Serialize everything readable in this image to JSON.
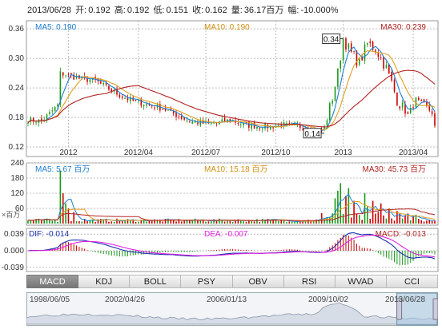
{
  "header": {
    "date": "2013/06/28",
    "open_label": "开:",
    "open": "0.192",
    "high_label": "高:",
    "high": "0.192",
    "low_label": "低:",
    "low": "0.151",
    "close_label": "收:",
    "close": "0.162",
    "volume_label": "量:",
    "volume": "36.17百万",
    "change_label": "幅:",
    "change": "-10.000%"
  },
  "colors": {
    "up": "#1a9a1a",
    "down": "#cc0000",
    "ma5": "#1e7fd0",
    "ma10": "#e0a020",
    "ma30": "#b22222",
    "dif": "#1a2fb0",
    "dea": "#e020e0",
    "grid": "#bcbcbc"
  },
  "price_legend": {
    "ma5": "MA5: 0.190",
    "ma10": "MA10: 0.190",
    "ma30": "MA30: 0.239"
  },
  "volume_legend": {
    "ma5": "MA5: 5.67 百万",
    "ma10": "MA10: 15.18 百万",
    "ma30": "MA30: 45.73 百万"
  },
  "macd_legend": {
    "dif": "DIF: -0.014",
    "dea": "DEA: -0.007",
    "macd": "MACD: -0.013"
  },
  "volume_unit": "×百万",
  "tabs": [
    "MACD",
    "KDJ",
    "BOLL",
    "PSY",
    "OBV",
    "RSI",
    "WVAD",
    "CCI"
  ],
  "active_tab": "MACD",
  "navigator": {
    "labels": [
      "1998/06/05",
      "2002/04/26",
      "2006/01/13",
      "2009/10/02",
      "2013/06/28"
    ],
    "selected_fraction": [
      0.9,
      1.0
    ]
  },
  "chart_data": [
    {
      "type": "candlestick",
      "panel": "price",
      "y_ticks": [
        0.12,
        0.18,
        0.24,
        0.3,
        0.36
      ],
      "ylim": [
        0.12,
        0.37
      ],
      "x_tick_labels": [
        "2012",
        "2012/04",
        "2012/07",
        "2012/10",
        "2013",
        "2013/04"
      ],
      "x_tick_positions": [
        15,
        41,
        66,
        92,
        117,
        143
      ],
      "annotations": [
        {
          "text": "0.34",
          "x": 117,
          "y": 0.34
        },
        {
          "text": "0.14",
          "x": 110,
          "y": 0.148
        }
      ],
      "anchors": [
        [
          0,
          0.175
        ],
        [
          5,
          0.172
        ],
        [
          8,
          0.188
        ],
        [
          11,
          0.205
        ],
        [
          12,
          0.27
        ],
        [
          15,
          0.265
        ],
        [
          20,
          0.258
        ],
        [
          25,
          0.255
        ],
        [
          30,
          0.238
        ],
        [
          35,
          0.222
        ],
        [
          40,
          0.212
        ],
        [
          45,
          0.205
        ],
        [
          50,
          0.198
        ],
        [
          55,
          0.185
        ],
        [
          60,
          0.172
        ],
        [
          65,
          0.168
        ],
        [
          70,
          0.168
        ],
        [
          75,
          0.175
        ],
        [
          80,
          0.165
        ],
        [
          85,
          0.162
        ],
        [
          90,
          0.162
        ],
        [
          95,
          0.165
        ],
        [
          100,
          0.162
        ],
        [
          105,
          0.158
        ],
        [
          108,
          0.15
        ],
        [
          110,
          0.16
        ],
        [
          113,
          0.22
        ],
        [
          115,
          0.27
        ],
        [
          117,
          0.34
        ],
        [
          120,
          0.31
        ],
        [
          123,
          0.29
        ],
        [
          126,
          0.33
        ],
        [
          129,
          0.32
        ],
        [
          131,
          0.3
        ],
        [
          133,
          0.28
        ],
        [
          135,
          0.25
        ],
        [
          137,
          0.215
        ],
        [
          139,
          0.2
        ],
        [
          141,
          0.185
        ],
        [
          144,
          0.215
        ],
        [
          147,
          0.205
        ],
        [
          150,
          0.19
        ],
        [
          151,
          0.16
        ]
      ],
      "series": [
        {
          "name": "MA5",
          "last": 0.19
        },
        {
          "name": "MA10",
          "last": 0.19
        },
        {
          "name": "MA30",
          "last": 0.239
        }
      ]
    },
    {
      "type": "bar",
      "panel": "volume",
      "y_ticks": [
        0,
        60,
        120,
        180,
        240
      ],
      "ylim": [
        0,
        240
      ],
      "spikes": [
        [
          12,
          210
        ],
        [
          13,
          120
        ],
        [
          14,
          80
        ],
        [
          15,
          60
        ],
        [
          17,
          45
        ],
        [
          114,
          100
        ],
        [
          115,
          130
        ],
        [
          116,
          160
        ],
        [
          118,
          110
        ],
        [
          119,
          140
        ],
        [
          121,
          90
        ],
        [
          125,
          120
        ],
        [
          126,
          70
        ],
        [
          128,
          90
        ],
        [
          131,
          80
        ],
        [
          134,
          60
        ],
        [
          137,
          50
        ],
        [
          141,
          40
        ],
        [
          144,
          35
        ]
      ]
    },
    {
      "type": "macd",
      "panel": "macd",
      "y_ticks": [
        0.039,
        0.0,
        -0.039
      ],
      "ylim": [
        -0.045,
        0.045
      ]
    }
  ]
}
